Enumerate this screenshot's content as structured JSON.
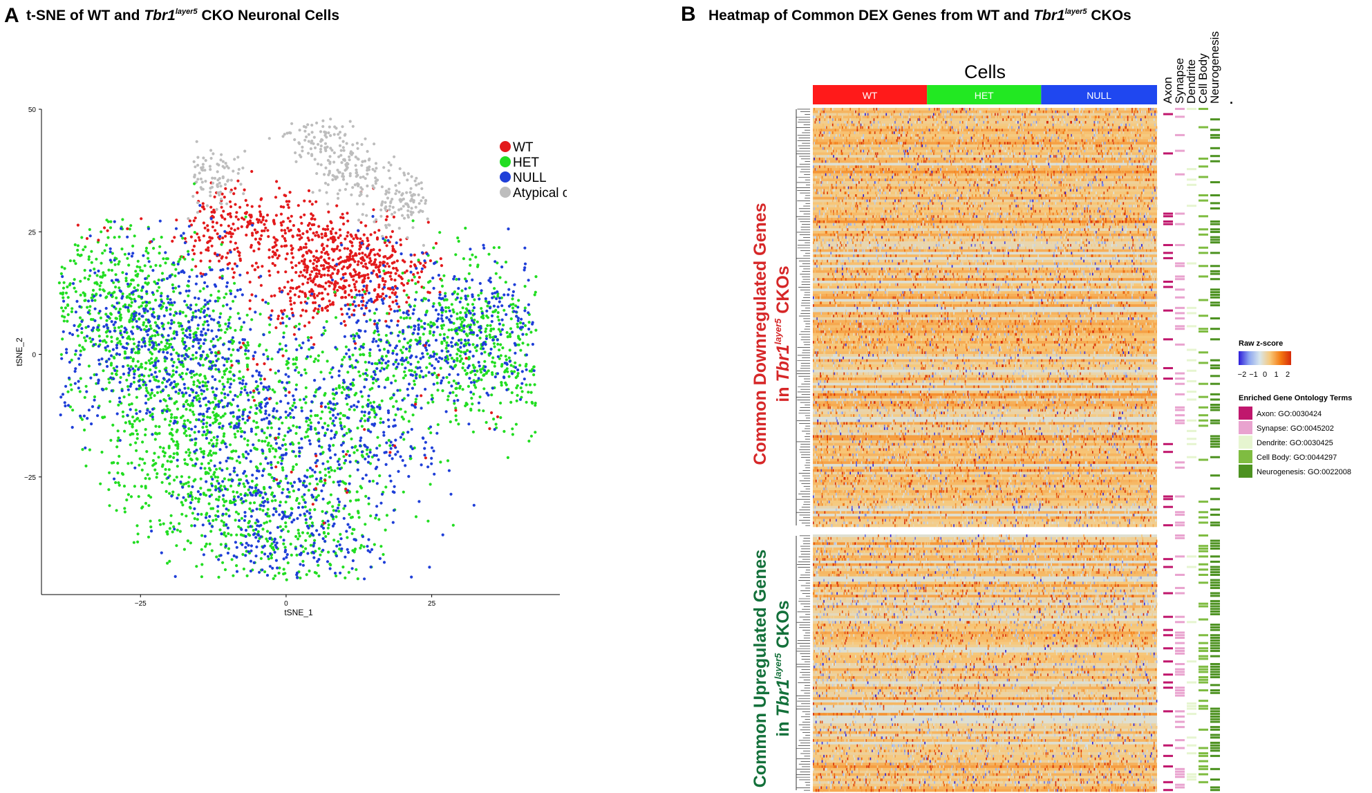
{
  "panels": {
    "a": {
      "letter": "A",
      "title_pre": "t-SNE of WT and ",
      "title_gene": "Tbr1",
      "title_sup": "layer5",
      "title_post": " CKO Neuronal Cells"
    },
    "b": {
      "letter": "B",
      "title_pre": "Heatmap of Common DEX Genes from WT and ",
      "title_gene": "Tbr1",
      "title_sup": "layer5",
      "title_post": " CKOs"
    }
  },
  "chart_data": [
    {
      "type": "scatter",
      "xlabel": "tSNE_1",
      "ylabel": "tSNE_2",
      "xlim": [
        -42,
        47
      ],
      "ylim": [
        -49,
        50
      ],
      "x_ticks": [
        -25,
        0,
        25
      ],
      "y_ticks": [
        50,
        25,
        0,
        -25
      ],
      "x_tick_labels": [
        "−25",
        "0",
        "25"
      ],
      "y_tick_labels": [
        "50",
        "25",
        "0",
        "−25"
      ],
      "grid": false,
      "legend_position": "top-right",
      "series": [
        {
          "name": "WT",
          "color": "#e31a1c"
        },
        {
          "name": "HET",
          "color": "#22dd22"
        },
        {
          "name": "NULL",
          "color": "#1f3fd8"
        },
        {
          "name": "Atypical cells",
          "color": "#bdbdbd"
        }
      ],
      "clusters": [
        {
          "series": "WT",
          "points": [
            [
              10,
              20
            ],
            [
              0,
              24
            ],
            [
              16,
              17
            ],
            [
              5,
              14
            ],
            [
              -10,
              25
            ]
          ],
          "spread": 4.5,
          "n": 900
        },
        {
          "series": "Atypical cells",
          "points": [
            [
              6,
              43
            ],
            [
              12,
              37
            ],
            [
              -13,
              36
            ],
            [
              20,
              31
            ]
          ],
          "spread": 3.2,
          "n": 420
        },
        {
          "series": "HET",
          "points": [
            [
              -25,
              5
            ],
            [
              -15,
              -5
            ],
            [
              10,
              -10
            ],
            [
              30,
              5
            ],
            [
              -10,
              -30
            ],
            [
              5,
              -35
            ],
            [
              -30,
              12
            ],
            [
              35,
              0
            ],
            [
              -20,
              -20
            ]
          ],
          "spread": 8,
          "n": 2600
        },
        {
          "series": "NULL",
          "points": [
            [
              -20,
              10
            ],
            [
              -10,
              -5
            ],
            [
              15,
              -15
            ],
            [
              35,
              5
            ],
            [
              -5,
              -25
            ],
            [
              0,
              -38
            ],
            [
              20,
              5
            ],
            [
              -30,
              0
            ]
          ],
          "spread": 8,
          "n": 1800
        },
        {
          "series": "WT",
          "points": [
            [
              -28,
              27
            ],
            [
              8,
              -22
            ],
            [
              30,
              -10
            ],
            [
              -5,
              -5
            ]
          ],
          "spread": 6,
          "n": 60
        }
      ]
    },
    {
      "type": "heatmap",
      "title": "Cells",
      "column_groups": [
        {
          "name": "WT",
          "color": "#ff1a1a",
          "n_cells": 130
        },
        {
          "name": "HET",
          "color": "#22e822",
          "n_cells": 130
        },
        {
          "name": "NULL",
          "color": "#1f47f0",
          "n_cells": 132
        }
      ],
      "row_groups": [
        {
          "name": "Common Downregulated Genes in Tbr1layer5 CKOs",
          "n_genes": 160,
          "mean_z": 0.5
        },
        {
          "name": "Common Upregulated Genes in Tbr1layer5 CKOs",
          "n_genes": 98,
          "mean_z": 0.4
        }
      ],
      "annotation_columns": [
        {
          "name": "Axon",
          "color": "#c0176d"
        },
        {
          "name": "Synapse",
          "color": "#e9a3cf"
        },
        {
          "name": "Dendrite",
          "color": "#e6f5d0"
        },
        {
          "name": "Cell Body",
          "color": "#7fbc41"
        },
        {
          "name": "Neurogenesis",
          "color": "#4d9221"
        }
      ],
      "annotation_extra_label": ".",
      "colorbar": {
        "title": "Raw z-score",
        "range": [
          -2.3,
          2.3
        ],
        "ticks": [
          -2,
          -1,
          0,
          1,
          2
        ],
        "tick_labels": [
          "−2",
          "−1",
          "0",
          "1",
          "2"
        ],
        "colors": [
          "#2b1bd9",
          "#8ea6f0",
          "#d7e6ec",
          "#f7c87a",
          "#f47a12",
          "#d62a0a"
        ]
      },
      "legend": {
        "title": "Enriched Gene Ontology Terms",
        "items": [
          {
            "label": "Axon: GO:0030424",
            "color": "#c0176d"
          },
          {
            "label": "Synapse: GO:0045202",
            "color": "#e9a3cf"
          },
          {
            "label": "Dendrite: GO:0030425",
            "color": "#e6f5d0"
          },
          {
            "label": "Cell Body: GO:0044297",
            "color": "#7fbc41"
          },
          {
            "label": "Neurogenesis: GO:0022008",
            "color": "#4d9221"
          }
        ]
      }
    }
  ],
  "side_labels": {
    "down_line1": "Common Downregulated Genes",
    "down_line2_pre": "in ",
    "down_gene": "Tbr1",
    "down_sup": "layer5",
    "down_post": " CKOs",
    "down_color": "#d62728",
    "up_line1": "Common Upregulated Genes",
    "up_line2_pre": "in ",
    "up_gene": "Tbr1",
    "up_sup": "layer5",
    "up_post": " CKOs",
    "up_color": "#13703a"
  }
}
